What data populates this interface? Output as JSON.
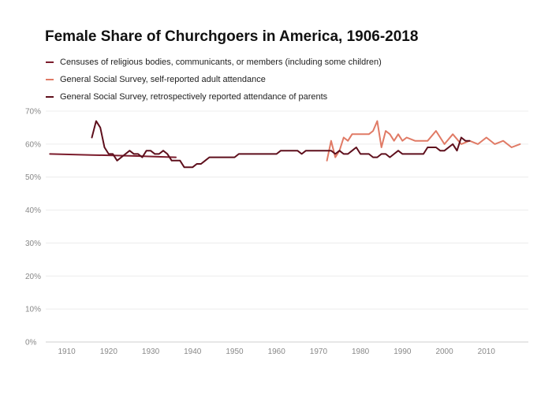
{
  "chart_data": {
    "type": "line",
    "title": "Female Share of Churchgoers in America, 1906-2018",
    "xlabel": "",
    "ylabel": "",
    "xlim": [
      1905,
      2020
    ],
    "ylim": [
      0,
      70
    ],
    "x_ticks": [
      1910,
      1920,
      1930,
      1940,
      1950,
      1960,
      1970,
      1980,
      1990,
      2000,
      2010
    ],
    "y_ticks": [
      0,
      10,
      20,
      30,
      40,
      50,
      60,
      70
    ],
    "y_tick_labels": [
      "0%",
      "10%",
      "20%",
      "30%",
      "40%",
      "50%",
      "60%",
      "70%"
    ],
    "grid": "horizontal",
    "legend_position": "top-left",
    "series": [
      {
        "name": "Censuses of religious bodies, communicants, or members (including some children)",
        "color": "#7b1c2c",
        "x": [
          1906,
          1916,
          1926,
          1936
        ],
        "values": [
          57,
          56.7,
          56.4,
          56
        ]
      },
      {
        "name": "General Social Survey, self-reported adult attendance",
        "color": "#e07a65",
        "x": [
          1972,
          1973,
          1974,
          1975,
          1976,
          1977,
          1978,
          1980,
          1982,
          1983,
          1984,
          1985,
          1986,
          1987,
          1988,
          1989,
          1990,
          1991,
          1993,
          1994,
          1996,
          1998,
          2000,
          2002,
          2004,
          2006,
          2008,
          2010,
          2012,
          2014,
          2016,
          2018
        ],
        "values": [
          55,
          61,
          56,
          58,
          62,
          61,
          63,
          63,
          63,
          64,
          67,
          59,
          64,
          63,
          61,
          63,
          61,
          62,
          61,
          61,
          61,
          64,
          60,
          63,
          60,
          61,
          60,
          62,
          60,
          61,
          59,
          60
        ]
      },
      {
        "name": "General Social Survey, retrospectively reported attendance of parents",
        "color": "#5e0f1c",
        "x": [
          1916,
          1917,
          1918,
          1919,
          1920,
          1921,
          1922,
          1923,
          1924,
          1925,
          1926,
          1927,
          1928,
          1929,
          1930,
          1931,
          1932,
          1933,
          1934,
          1935,
          1936,
          1937,
          1938,
          1939,
          1940,
          1941,
          1942,
          1943,
          1944,
          1945,
          1950,
          1951,
          1955,
          1960,
          1961,
          1965,
          1966,
          1967,
          1970,
          1971,
          1972,
          1973,
          1974,
          1975,
          1976,
          1977,
          1978,
          1979,
          1980,
          1982,
          1983,
          1984,
          1985,
          1986,
          1987,
          1988,
          1989,
          1990,
          1991,
          1993,
          1994,
          1995,
          1996,
          1997,
          1998,
          1999,
          2000,
          2002,
          2003,
          2004,
          2005,
          2006
        ],
        "values": [
          62,
          67,
          65,
          59,
          57,
          57,
          55,
          56,
          57,
          58,
          57,
          57,
          56,
          58,
          58,
          57,
          57,
          58,
          57,
          55,
          55,
          55,
          53,
          53,
          53,
          54,
          54,
          55,
          56,
          56,
          56,
          57,
          57,
          57,
          58,
          58,
          57,
          58,
          58,
          58,
          58,
          58,
          57,
          58,
          57,
          57,
          58,
          59,
          57,
          57,
          56,
          56,
          57,
          57,
          56,
          57,
          58,
          57,
          57,
          57,
          57,
          57,
          59,
          59,
          59,
          58,
          58,
          60,
          58,
          62,
          61,
          61
        ]
      }
    ]
  }
}
